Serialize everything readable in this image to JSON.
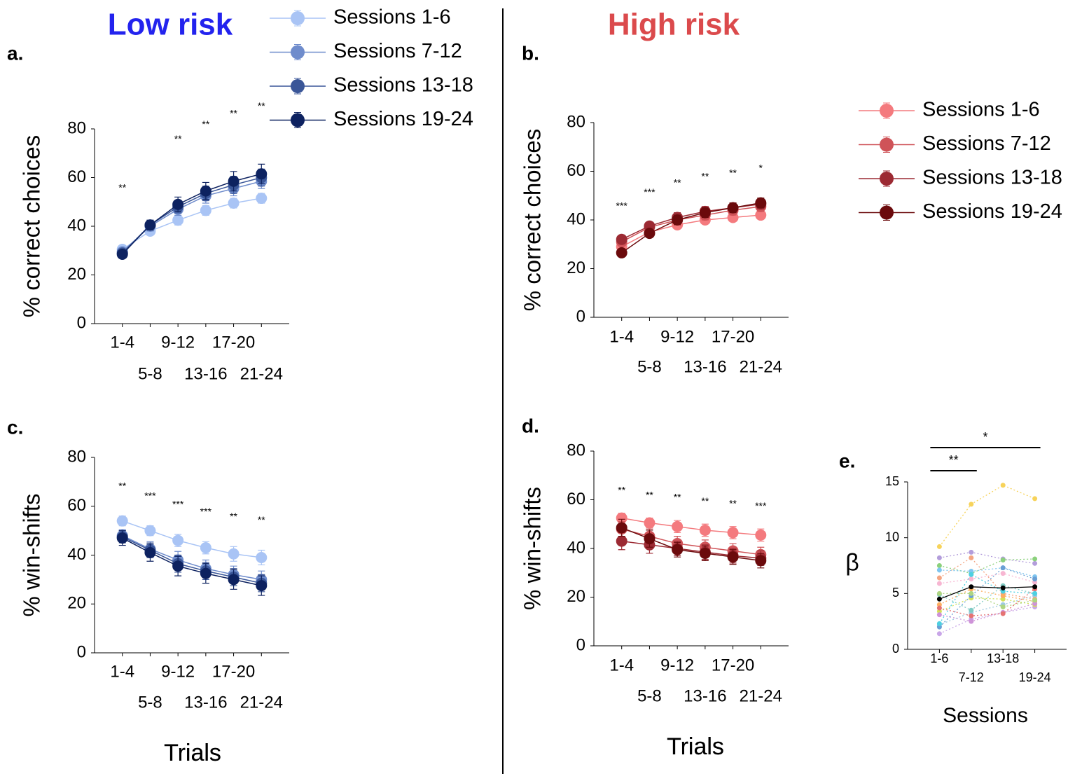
{
  "headings": [
    {
      "text": "Low risk",
      "color": "#2323ee"
    },
    {
      "text": "High risk",
      "color": "#db4a4c"
    }
  ],
  "chart_data": [
    {
      "type": "line",
      "panel_label": "a.",
      "ylabel": "% correct choices",
      "xlabel": "Trials",
      "categories": [
        "1-4",
        "5-8",
        "9-12",
        "13-16",
        "17-20",
        "21-24"
      ],
      "ylim": [
        0,
        80
      ],
      "yticks": [
        0,
        20,
        40,
        60,
        80
      ],
      "legend": true,
      "marker_size": 8,
      "annotations": [
        "**",
        null,
        "**",
        "**",
        "**",
        "**"
      ],
      "series": [
        {
          "name": "Sessions 1-6",
          "color": "#a9c4f5",
          "values": [
            30.5,
            38,
            42.5,
            46.5,
            49.5,
            51.5
          ],
          "errors": [
            1.5,
            1.5,
            2,
            2,
            2,
            2
          ]
        },
        {
          "name": "Sessions 7-12",
          "color": "#6f8ccc",
          "values": [
            29.5,
            40,
            47,
            52.5,
            55.5,
            58.5
          ],
          "errors": [
            1.5,
            2,
            2.5,
            3,
            3,
            3
          ]
        },
        {
          "name": "Sessions 13-18",
          "color": "#3a5698",
          "values": [
            29,
            40.5,
            48,
            53.5,
            57,
            60
          ],
          "errors": [
            1.5,
            2,
            2.5,
            3,
            3.5,
            3.5
          ]
        },
        {
          "name": "Sessions 19-24",
          "color": "#0d2260",
          "values": [
            28.5,
            40.5,
            49,
            54.5,
            58.5,
            61.5
          ],
          "errors": [
            1.5,
            2,
            3,
            3.5,
            4,
            4
          ]
        }
      ]
    },
    {
      "type": "line",
      "panel_label": "b.",
      "ylabel": "% correct choices",
      "xlabel": "Trials",
      "categories": [
        "1-4",
        "5-8",
        "9-12",
        "13-16",
        "17-20",
        "21-24"
      ],
      "ylim": [
        0,
        80
      ],
      "yticks": [
        0,
        20,
        40,
        60,
        80
      ],
      "legend": true,
      "marker_size": 8,
      "annotations": [
        "***",
        "***",
        "**",
        "**",
        "**",
        "*"
      ],
      "series": [
        {
          "name": "Sessions 1-6",
          "color": "#f47a7e",
          "values": [
            29,
            35,
            38,
            40,
            41,
            42
          ],
          "errors": [
            1.5,
            1.5,
            1.5,
            1.5,
            1.5,
            1.5
          ]
        },
        {
          "name": "Sessions 7-12",
          "color": "#cf5358",
          "values": [
            31,
            37,
            40,
            42,
            44,
            45.5
          ],
          "errors": [
            1.5,
            1.5,
            1.5,
            2,
            2,
            2
          ]
        },
        {
          "name": "Sessions 13-18",
          "color": "#9c2a33",
          "values": [
            32,
            37.5,
            41,
            43.5,
            45,
            46.5
          ],
          "errors": [
            1.5,
            1.5,
            2,
            2,
            2,
            2
          ]
        },
        {
          "name": "Sessions 19-24",
          "color": "#6b0a0c",
          "values": [
            26.5,
            34.5,
            40,
            43,
            45,
            47
          ],
          "errors": [
            1.5,
            1.5,
            2,
            2,
            2,
            2
          ]
        }
      ]
    },
    {
      "type": "line",
      "panel_label": "c.",
      "ylabel": "% win-shifts",
      "xlabel": "Trials",
      "categories": [
        "1-4",
        "5-8",
        "9-12",
        "13-16",
        "17-20",
        "21-24"
      ],
      "ylim": [
        0,
        80
      ],
      "yticks": [
        0,
        20,
        40,
        60,
        80
      ],
      "marker_size": 8,
      "annotations": [
        "**",
        "***",
        "***",
        "***",
        "**",
        "**"
      ],
      "series": [
        {
          "color": "#a9c4f5",
          "values": [
            54,
            50,
            46,
            43,
            40.5,
            39
          ],
          "errors": [
            2,
            2,
            2.5,
            2.5,
            3,
            3
          ]
        },
        {
          "color": "#6f8ccc",
          "values": [
            48,
            42.5,
            38,
            34.5,
            32,
            30
          ],
          "errors": [
            2.5,
            3,
            3.5,
            3.5,
            3.5,
            3.5
          ]
        },
        {
          "color": "#3a5698",
          "values": [
            47.5,
            42,
            36.5,
            33.5,
            31,
            28.5
          ],
          "errors": [
            2.5,
            3,
            3.5,
            3.5,
            3.5,
            3.5
          ]
        },
        {
          "color": "#0d2260",
          "values": [
            47,
            41,
            35.5,
            32.5,
            30,
            27.5
          ],
          "errors": [
            3,
            3.5,
            4,
            4,
            4,
            4
          ]
        }
      ]
    },
    {
      "type": "line",
      "panel_label": "d.",
      "ylabel": "% win-shifts",
      "xlabel": "Trials",
      "categories": [
        "1-4",
        "5-8",
        "9-12",
        "13-16",
        "17-20",
        "21-24"
      ],
      "ylim": [
        0,
        80
      ],
      "yticks": [
        0,
        20,
        40,
        60,
        80
      ],
      "marker_size": 8,
      "annotations": [
        "**",
        "**",
        "**",
        "**",
        "**",
        "***"
      ],
      "series": [
        {
          "color": "#f47a7e",
          "values": [
            52.5,
            50.5,
            49,
            47.5,
            46.5,
            45.5
          ],
          "errors": [
            2,
            2,
            2.5,
            2.5,
            2.5,
            2.5
          ]
        },
        {
          "color": "#cf5358",
          "values": [
            48,
            45,
            42,
            40.5,
            39,
            37.5
          ],
          "errors": [
            3,
            3,
            3,
            3,
            3,
            3
          ]
        },
        {
          "color": "#9c2a33",
          "values": [
            43,
            41.5,
            40,
            38.5,
            37,
            36
          ],
          "errors": [
            3.5,
            3.5,
            3,
            3,
            3,
            3
          ]
        },
        {
          "color": "#6b0a0c",
          "values": [
            48.5,
            44,
            39.5,
            38,
            36.5,
            35
          ],
          "errors": [
            3.5,
            3.5,
            3,
            3,
            3,
            3
          ]
        }
      ]
    },
    {
      "type": "line",
      "panel_label": "e.",
      "ylabel": "β",
      "xlabel": "Sessions",
      "categories": [
        "1-6",
        "7-12",
        "13-18",
        "19-24"
      ],
      "ylim": [
        0,
        15
      ],
      "yticks": [
        0,
        5,
        10,
        15
      ],
      "marker_size": 3.5,
      "brackets": [
        {
          "from": 0,
          "to": 1,
          "label": "**"
        },
        {
          "from": 0,
          "to": 3,
          "label": "*"
        }
      ],
      "series": [
        {
          "color": "#f7d35a",
          "line_style": "dotted",
          "values": [
            9.2,
            13,
            14.7,
            13.5
          ]
        },
        {
          "color": "#c9a6e8",
          "line_style": "dotted",
          "values": [
            1.4,
            2.7,
            3.3,
            3.8
          ]
        },
        {
          "color": "#9ecae1",
          "line_style": "dotted",
          "values": [
            2.2,
            3.3,
            4.0,
            4.8
          ]
        },
        {
          "color": "#b39ddb",
          "line_style": "dotted",
          "values": [
            8.2,
            8.7,
            8.1,
            7.7
          ]
        },
        {
          "color": "#8bd17c",
          "line_style": "dotted",
          "values": [
            7.5,
            6.8,
            8.0,
            8.1
          ]
        },
        {
          "color": "#f4a582",
          "line_style": "dotted",
          "values": [
            6.4,
            8.2,
            5.0,
            4.5
          ]
        },
        {
          "color": "#7fc6f0",
          "line_style": "dotted",
          "values": [
            7.1,
            7.0,
            7.3,
            6.5
          ]
        },
        {
          "color": "#f7b6d2",
          "line_style": "dotted",
          "values": [
            5.9,
            6.3,
            6.8,
            6.0
          ]
        },
        {
          "color": "#d4e157",
          "line_style": "dotted",
          "values": [
            3.4,
            4.6,
            4.5,
            4.0
          ]
        },
        {
          "color": "#fdae61",
          "line_style": "dotted",
          "values": [
            4.0,
            5.4,
            4.8,
            4.3
          ]
        },
        {
          "color": "#80cbc4",
          "line_style": "dotted",
          "values": [
            4.9,
            3.5,
            5.7,
            5.0
          ]
        },
        {
          "color": "#ce93d8",
          "line_style": "dotted",
          "values": [
            3.1,
            2.5,
            3.3,
            4.1
          ]
        },
        {
          "color": "#6a9fd4",
          "line_style": "dotted",
          "values": [
            2.0,
            4.8,
            7.3,
            6.3
          ]
        },
        {
          "color": "#e57373",
          "line_style": "dotted",
          "values": [
            3.7,
            3.0,
            3.2,
            5.4
          ]
        },
        {
          "color": "#aed581",
          "line_style": "dotted",
          "values": [
            5.0,
            5.0,
            3.8,
            4.4
          ]
        },
        {
          "color": "#4dd0e1",
          "line_style": "dotted",
          "values": [
            2.3,
            6.7,
            5.2,
            5.0
          ]
        },
        {
          "color": "#000000",
          "values": [
            4.5,
            5.6,
            5.5,
            5.6
          ]
        }
      ]
    }
  ]
}
